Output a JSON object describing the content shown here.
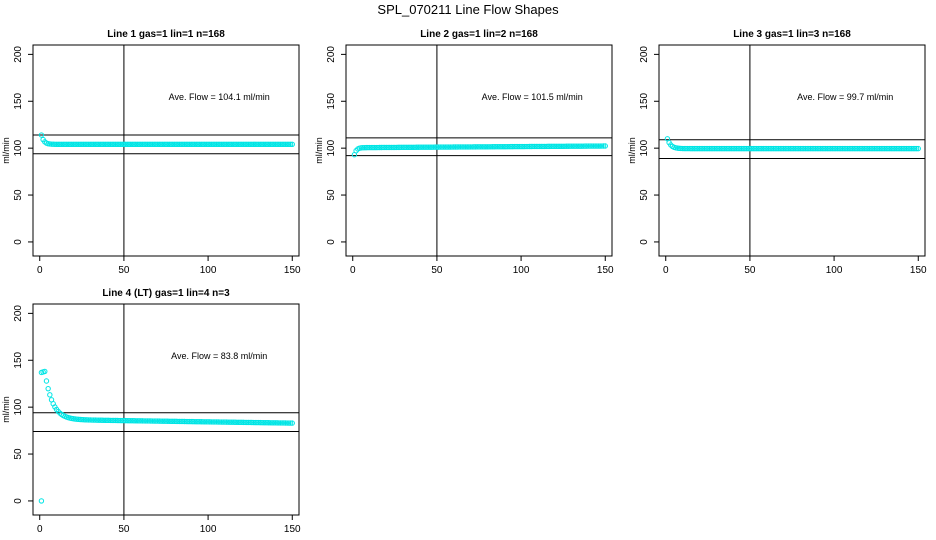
{
  "title": "SPL_070211  Line Flow Shapes",
  "colors": {
    "points": "#00e5e5",
    "lines": "#000000"
  },
  "chart_data": [
    {
      "type": "scatter",
      "title": "Line 1 gas=1 lin=1 n=168",
      "xlabel": "",
      "ylabel": "ml/min",
      "xlim": [
        -4,
        154
      ],
      "ylim": [
        -15,
        210
      ],
      "xticks": [
        "0",
        "50",
        "100",
        "150"
      ],
      "yticks": [
        "0",
        "50",
        "100",
        "150",
        "200"
      ],
      "vline": 50,
      "hlines": [
        114,
        94
      ],
      "annotation": "Ave. Flow =  104.1  ml/min",
      "series": [
        {
          "shape": "decay",
          "n": 150,
          "start": 114,
          "plateau": 104.1,
          "tau": 1.5,
          "drift": 0
        }
      ]
    },
    {
      "type": "scatter",
      "title": "Line 2 gas=1 lin=2 n=168",
      "xlabel": "",
      "ylabel": "ml/min",
      "xlim": [
        -4,
        154
      ],
      "ylim": [
        -15,
        210
      ],
      "xticks": [
        "0",
        "50",
        "100",
        "150"
      ],
      "yticks": [
        "0",
        "50",
        "100",
        "150",
        "200"
      ],
      "vline": 50,
      "hlines": [
        111,
        92
      ],
      "annotation": "Ave. Flow =  101.5  ml/min",
      "series": [
        {
          "shape": "decay",
          "n": 150,
          "start": 93,
          "plateau": 100.5,
          "tau": 1.2,
          "drift": 1.8
        }
      ]
    },
    {
      "type": "scatter",
      "title": "Line 3 gas=1 lin=3 n=168",
      "xlabel": "",
      "ylabel": "ml/min",
      "xlim": [
        -4,
        154
      ],
      "ylim": [
        -15,
        210
      ],
      "xticks": [
        "0",
        "50",
        "100",
        "150"
      ],
      "yticks": [
        "0",
        "50",
        "100",
        "150",
        "200"
      ],
      "vline": 50,
      "hlines": [
        109,
        89
      ],
      "annotation": "Ave. Flow =  99.7  ml/min",
      "series": [
        {
          "shape": "decay",
          "n": 150,
          "start": 110,
          "plateau": 99.5,
          "tau": 2.0,
          "drift": 0
        }
      ]
    },
    {
      "type": "scatter",
      "title": "Line 4 (LT) gas=1 lin=4 n=3",
      "xlabel": "",
      "ylabel": "ml/min",
      "xlim": [
        -4,
        154
      ],
      "ylim": [
        -15,
        210
      ],
      "xticks": [
        "0",
        "50",
        "100",
        "150"
      ],
      "yticks": [
        "0",
        "50",
        "100",
        "150",
        "200"
      ],
      "vline": 50,
      "hlines": [
        94,
        74
      ],
      "annotation": "Ave. Flow =  83.8  ml/min",
      "outliers": [
        {
          "x": 1,
          "y": 0
        }
      ],
      "series": [
        {
          "shape": "peak",
          "n": 150,
          "start": 137,
          "peak_x": 3,
          "plateau": 87,
          "tau": 4.5,
          "drift": -4
        }
      ]
    }
  ]
}
